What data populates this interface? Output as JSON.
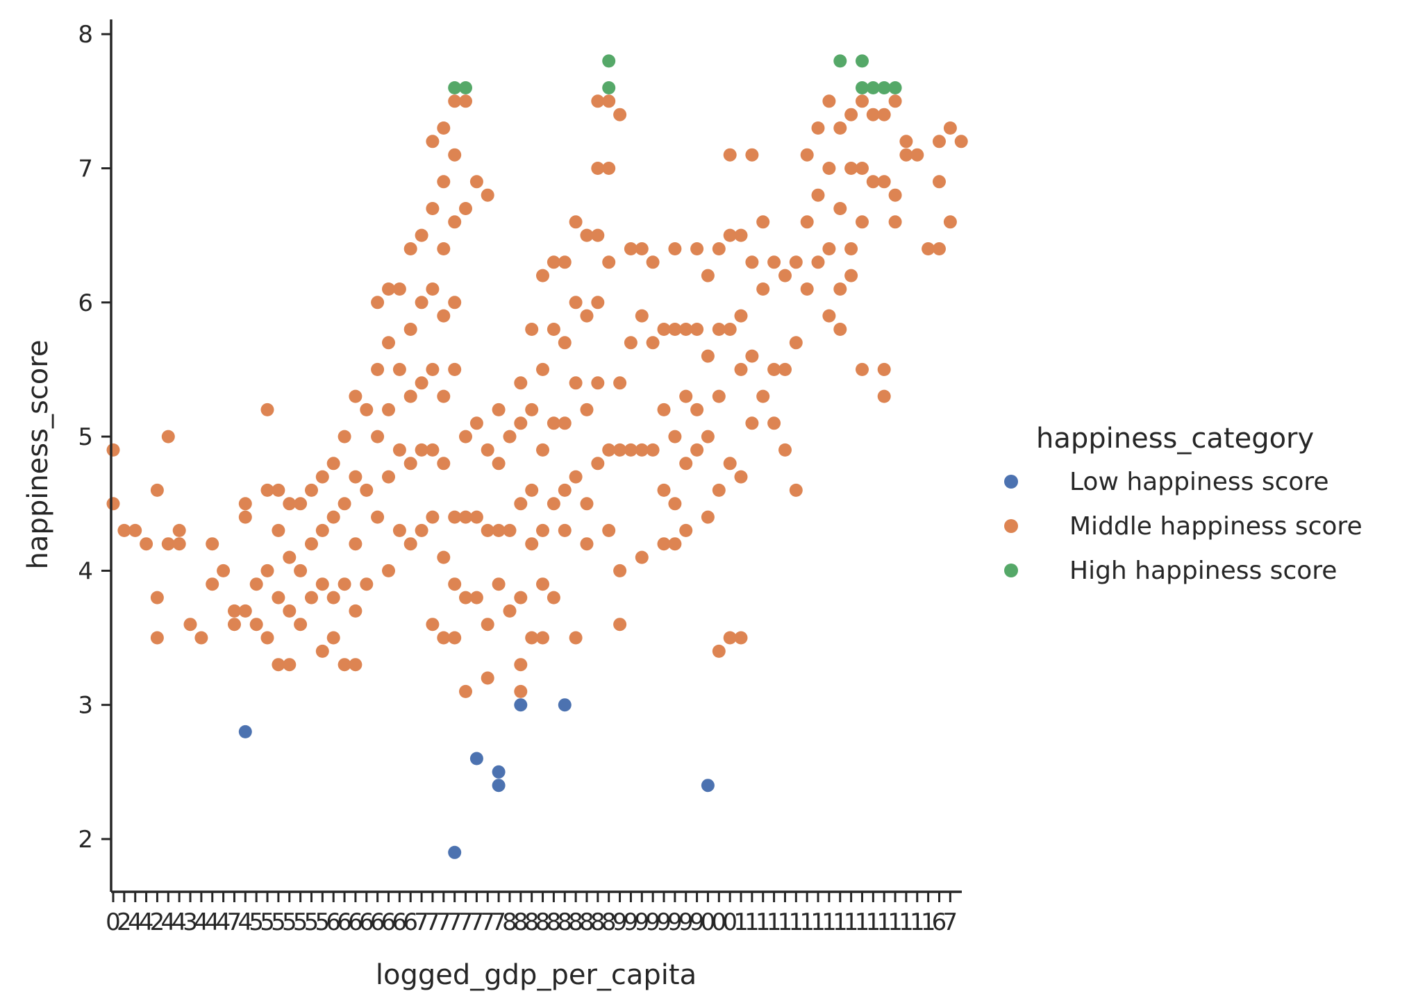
{
  "chart_data": {
    "type": "scatter",
    "xlabel": "logged_gdp_per_capita",
    "ylabel": "happiness_score",
    "ylim": [
      1.6,
      8.1
    ],
    "yticks": [
      2,
      3,
      4,
      5,
      6,
      7,
      8
    ],
    "x_axis_note": "categorical axis (~77 overlapping tick labels), positions given as category index",
    "grid": false,
    "legend": {
      "title": "happiness_category",
      "placement": "right",
      "entries": [
        {
          "name": "Low happiness score",
          "color": "#4c72b0"
        },
        {
          "name": "Middle happiness score",
          "color": "#dd8452"
        },
        {
          "name": "High happiness score",
          "color": "#55a868"
        }
      ]
    },
    "x_tick_labels": [
      "0",
      "2",
      "4",
      "4",
      "2",
      "4",
      "4",
      "3",
      "4",
      "4",
      "4",
      "7",
      "4",
      "5",
      "5",
      "5",
      "5",
      "5",
      "5",
      "5",
      "6",
      "6",
      "6",
      "6",
      "6",
      "6",
      "6",
      "6",
      "7",
      "7",
      "7",
      "7",
      "7",
      "7",
      "7",
      "7",
      "8",
      "8",
      "8",
      "8",
      "8",
      "8",
      "8",
      "8",
      "8",
      "8",
      "9",
      "9",
      "9",
      "9",
      "9",
      "9",
      "9",
      "9",
      "0",
      "0",
      "0",
      "1",
      "1",
      "1",
      "1",
      "1",
      "1",
      "1",
      "1",
      "1",
      "1",
      "1",
      "1",
      "1",
      "1",
      "1",
      "1",
      "1",
      "1",
      "6",
      "7"
    ],
    "series": [
      {
        "name": "Low happiness score",
        "color": "#4c72b0",
        "points": [
          [
            12,
            2.8
          ],
          [
            31,
            1.9
          ],
          [
            33,
            2.6
          ],
          [
            35,
            2.5
          ],
          [
            35,
            2.4
          ],
          [
            37,
            3.0
          ],
          [
            41,
            3.0
          ],
          [
            54,
            2.4
          ]
        ]
      },
      {
        "name": "Middle happiness score",
        "color": "#dd8452",
        "points": [
          [
            0,
            4.9
          ],
          [
            0,
            4.5
          ],
          [
            1,
            4.3
          ],
          [
            2,
            4.3
          ],
          [
            3,
            4.2
          ],
          [
            4,
            4.6
          ],
          [
            4,
            3.8
          ],
          [
            4,
            3.5
          ],
          [
            5,
            5.0
          ],
          [
            5,
            4.2
          ],
          [
            6,
            4.3
          ],
          [
            6,
            4.2
          ],
          [
            7,
            3.6
          ],
          [
            8,
            3.5
          ],
          [
            9,
            4.2
          ],
          [
            9,
            3.9
          ],
          [
            10,
            4.0
          ],
          [
            11,
            3.7
          ],
          [
            11,
            3.6
          ],
          [
            12,
            4.5
          ],
          [
            12,
            4.4
          ],
          [
            12,
            3.7
          ],
          [
            13,
            3.9
          ],
          [
            13,
            3.6
          ],
          [
            14,
            5.2
          ],
          [
            14,
            4.6
          ],
          [
            14,
            4.0
          ],
          [
            14,
            3.5
          ],
          [
            15,
            4.6
          ],
          [
            15,
            4.3
          ],
          [
            15,
            3.8
          ],
          [
            15,
            3.3
          ],
          [
            16,
            4.5
          ],
          [
            16,
            4.1
          ],
          [
            16,
            3.7
          ],
          [
            16,
            3.3
          ],
          [
            17,
            4.5
          ],
          [
            17,
            4.0
          ],
          [
            17,
            3.6
          ],
          [
            18,
            4.6
          ],
          [
            18,
            4.2
          ],
          [
            18,
            3.8
          ],
          [
            19,
            4.7
          ],
          [
            19,
            4.3
          ],
          [
            19,
            3.9
          ],
          [
            19,
            3.4
          ],
          [
            20,
            4.8
          ],
          [
            20,
            4.4
          ],
          [
            20,
            3.8
          ],
          [
            20,
            3.5
          ],
          [
            21,
            5.0
          ],
          [
            21,
            4.5
          ],
          [
            21,
            3.9
          ],
          [
            21,
            3.3
          ],
          [
            22,
            5.3
          ],
          [
            22,
            4.7
          ],
          [
            22,
            4.2
          ],
          [
            22,
            3.7
          ],
          [
            22,
            3.3
          ],
          [
            23,
            5.2
          ],
          [
            23,
            4.6
          ],
          [
            23,
            3.9
          ],
          [
            24,
            6.0
          ],
          [
            24,
            5.5
          ],
          [
            24,
            5.0
          ],
          [
            24,
            4.4
          ],
          [
            25,
            6.1
          ],
          [
            25,
            5.7
          ],
          [
            25,
            5.2
          ],
          [
            25,
            4.7
          ],
          [
            25,
            4.0
          ],
          [
            26,
            6.1
          ],
          [
            26,
            5.5
          ],
          [
            26,
            4.9
          ],
          [
            26,
            4.3
          ],
          [
            27,
            6.4
          ],
          [
            27,
            5.8
          ],
          [
            27,
            5.3
          ],
          [
            27,
            4.8
          ],
          [
            27,
            4.2
          ],
          [
            28,
            6.5
          ],
          [
            28,
            6.0
          ],
          [
            28,
            5.4
          ],
          [
            28,
            4.9
          ],
          [
            28,
            4.3
          ],
          [
            29,
            7.2
          ],
          [
            29,
            6.7
          ],
          [
            29,
            6.1
          ],
          [
            29,
            5.5
          ],
          [
            29,
            4.9
          ],
          [
            29,
            4.4
          ],
          [
            29,
            3.6
          ],
          [
            30,
            7.3
          ],
          [
            30,
            6.9
          ],
          [
            30,
            6.4
          ],
          [
            30,
            5.9
          ],
          [
            30,
            5.3
          ],
          [
            30,
            4.8
          ],
          [
            30,
            4.1
          ],
          [
            30,
            3.5
          ],
          [
            31,
            7.5
          ],
          [
            31,
            7.1
          ],
          [
            31,
            6.6
          ],
          [
            31,
            6.0
          ],
          [
            31,
            5.5
          ],
          [
            31,
            4.4
          ],
          [
            31,
            3.9
          ],
          [
            31,
            3.5
          ],
          [
            32,
            7.5
          ],
          [
            32,
            6.7
          ],
          [
            32,
            5.0
          ],
          [
            32,
            4.4
          ],
          [
            32,
            3.8
          ],
          [
            32,
            3.1
          ],
          [
            33,
            6.9
          ],
          [
            33,
            5.1
          ],
          [
            33,
            4.4
          ],
          [
            33,
            3.8
          ],
          [
            34,
            6.8
          ],
          [
            34,
            4.9
          ],
          [
            34,
            4.3
          ],
          [
            34,
            3.6
          ],
          [
            34,
            3.2
          ],
          [
            35,
            5.2
          ],
          [
            35,
            4.8
          ],
          [
            35,
            4.3
          ],
          [
            35,
            3.9
          ],
          [
            36,
            5.0
          ],
          [
            36,
            4.3
          ],
          [
            36,
            3.7
          ],
          [
            37,
            5.4
          ],
          [
            37,
            5.1
          ],
          [
            37,
            4.5
          ],
          [
            37,
            3.8
          ],
          [
            37,
            3.3
          ],
          [
            37,
            3.1
          ],
          [
            38,
            5.8
          ],
          [
            38,
            5.2
          ],
          [
            38,
            4.6
          ],
          [
            38,
            4.2
          ],
          [
            38,
            3.5
          ],
          [
            39,
            6.2
          ],
          [
            39,
            5.5
          ],
          [
            39,
            4.9
          ],
          [
            39,
            4.3
          ],
          [
            39,
            3.9
          ],
          [
            39,
            3.5
          ],
          [
            40,
            6.3
          ],
          [
            40,
            5.8
          ],
          [
            40,
            5.1
          ],
          [
            40,
            4.5
          ],
          [
            40,
            3.8
          ],
          [
            41,
            6.3
          ],
          [
            41,
            5.7
          ],
          [
            41,
            5.1
          ],
          [
            41,
            4.6
          ],
          [
            41,
            4.3
          ],
          [
            42,
            6.6
          ],
          [
            42,
            6.0
          ],
          [
            42,
            5.4
          ],
          [
            42,
            4.7
          ],
          [
            42,
            3.5
          ],
          [
            43,
            6.5
          ],
          [
            43,
            5.9
          ],
          [
            43,
            5.2
          ],
          [
            43,
            4.5
          ],
          [
            43,
            4.2
          ],
          [
            44,
            7.5
          ],
          [
            44,
            7.0
          ],
          [
            44,
            6.5
          ],
          [
            44,
            6.0
          ],
          [
            44,
            5.4
          ],
          [
            44,
            4.8
          ],
          [
            45,
            7.5
          ],
          [
            45,
            7.0
          ],
          [
            45,
            6.3
          ],
          [
            45,
            4.9
          ],
          [
            45,
            4.3
          ],
          [
            46,
            7.4
          ],
          [
            46,
            5.4
          ],
          [
            46,
            4.9
          ],
          [
            46,
            4.0
          ],
          [
            46,
            3.6
          ],
          [
            47,
            6.4
          ],
          [
            47,
            5.7
          ],
          [
            47,
            4.9
          ],
          [
            48,
            6.4
          ],
          [
            48,
            5.9
          ],
          [
            48,
            4.9
          ],
          [
            48,
            4.1
          ],
          [
            49,
            6.3
          ],
          [
            49,
            5.7
          ],
          [
            49,
            4.9
          ],
          [
            50,
            5.8
          ],
          [
            50,
            5.2
          ],
          [
            50,
            4.6
          ],
          [
            50,
            4.2
          ],
          [
            51,
            6.4
          ],
          [
            51,
            5.8
          ],
          [
            51,
            5.0
          ],
          [
            51,
            4.5
          ],
          [
            51,
            4.2
          ],
          [
            52,
            5.8
          ],
          [
            52,
            5.3
          ],
          [
            52,
            4.8
          ],
          [
            52,
            4.3
          ],
          [
            53,
            6.4
          ],
          [
            53,
            5.8
          ],
          [
            53,
            5.2
          ],
          [
            53,
            4.9
          ],
          [
            54,
            6.2
          ],
          [
            54,
            5.6
          ],
          [
            54,
            5.0
          ],
          [
            54,
            4.4
          ],
          [
            55,
            6.4
          ],
          [
            55,
            5.8
          ],
          [
            55,
            5.3
          ],
          [
            55,
            4.6
          ],
          [
            55,
            3.4
          ],
          [
            56,
            7.1
          ],
          [
            56,
            6.5
          ],
          [
            56,
            5.8
          ],
          [
            56,
            4.8
          ],
          [
            56,
            3.5
          ],
          [
            57,
            6.5
          ],
          [
            57,
            5.9
          ],
          [
            57,
            5.5
          ],
          [
            57,
            4.7
          ],
          [
            57,
            3.5
          ],
          [
            58,
            7.1
          ],
          [
            58,
            6.3
          ],
          [
            58,
            5.6
          ],
          [
            58,
            5.1
          ],
          [
            59,
            6.6
          ],
          [
            59,
            6.1
          ],
          [
            59,
            5.3
          ],
          [
            60,
            6.3
          ],
          [
            60,
            5.5
          ],
          [
            60,
            5.1
          ],
          [
            61,
            6.2
          ],
          [
            61,
            5.5
          ],
          [
            61,
            4.9
          ],
          [
            62,
            6.3
          ],
          [
            62,
            5.7
          ],
          [
            62,
            4.6
          ],
          [
            63,
            7.1
          ],
          [
            63,
            6.6
          ],
          [
            63,
            6.1
          ],
          [
            64,
            7.3
          ],
          [
            64,
            6.8
          ],
          [
            64,
            6.3
          ],
          [
            65,
            7.5
          ],
          [
            65,
            7.0
          ],
          [
            65,
            6.4
          ],
          [
            65,
            5.9
          ],
          [
            66,
            7.3
          ],
          [
            66,
            6.7
          ],
          [
            66,
            6.1
          ],
          [
            66,
            5.8
          ],
          [
            67,
            7.4
          ],
          [
            67,
            7.0
          ],
          [
            67,
            6.4
          ],
          [
            67,
            6.2
          ],
          [
            68,
            7.5
          ],
          [
            68,
            7.0
          ],
          [
            68,
            6.6
          ],
          [
            68,
            5.5
          ],
          [
            69,
            7.4
          ],
          [
            69,
            6.9
          ],
          [
            70,
            7.4
          ],
          [
            70,
            6.9
          ],
          [
            70,
            5.5
          ],
          [
            70,
            5.3
          ],
          [
            71,
            7.5
          ],
          [
            71,
            6.8
          ],
          [
            71,
            6.6
          ],
          [
            72,
            7.2
          ],
          [
            72,
            7.1
          ],
          [
            73,
            7.1
          ],
          [
            74,
            6.4
          ],
          [
            75,
            7.2
          ],
          [
            75,
            6.9
          ],
          [
            75,
            6.4
          ],
          [
            76,
            7.3
          ],
          [
            76,
            6.6
          ],
          [
            77,
            7.2
          ]
        ]
      },
      {
        "name": "High happiness score",
        "color": "#55a868",
        "points": [
          [
            31,
            7.6
          ],
          [
            32,
            7.6
          ],
          [
            45,
            7.8
          ],
          [
            45,
            7.6
          ],
          [
            66,
            7.8
          ],
          [
            68,
            7.8
          ],
          [
            68,
            7.6
          ],
          [
            69,
            7.6
          ],
          [
            70,
            7.6
          ],
          [
            71,
            7.6
          ]
        ]
      }
    ]
  }
}
